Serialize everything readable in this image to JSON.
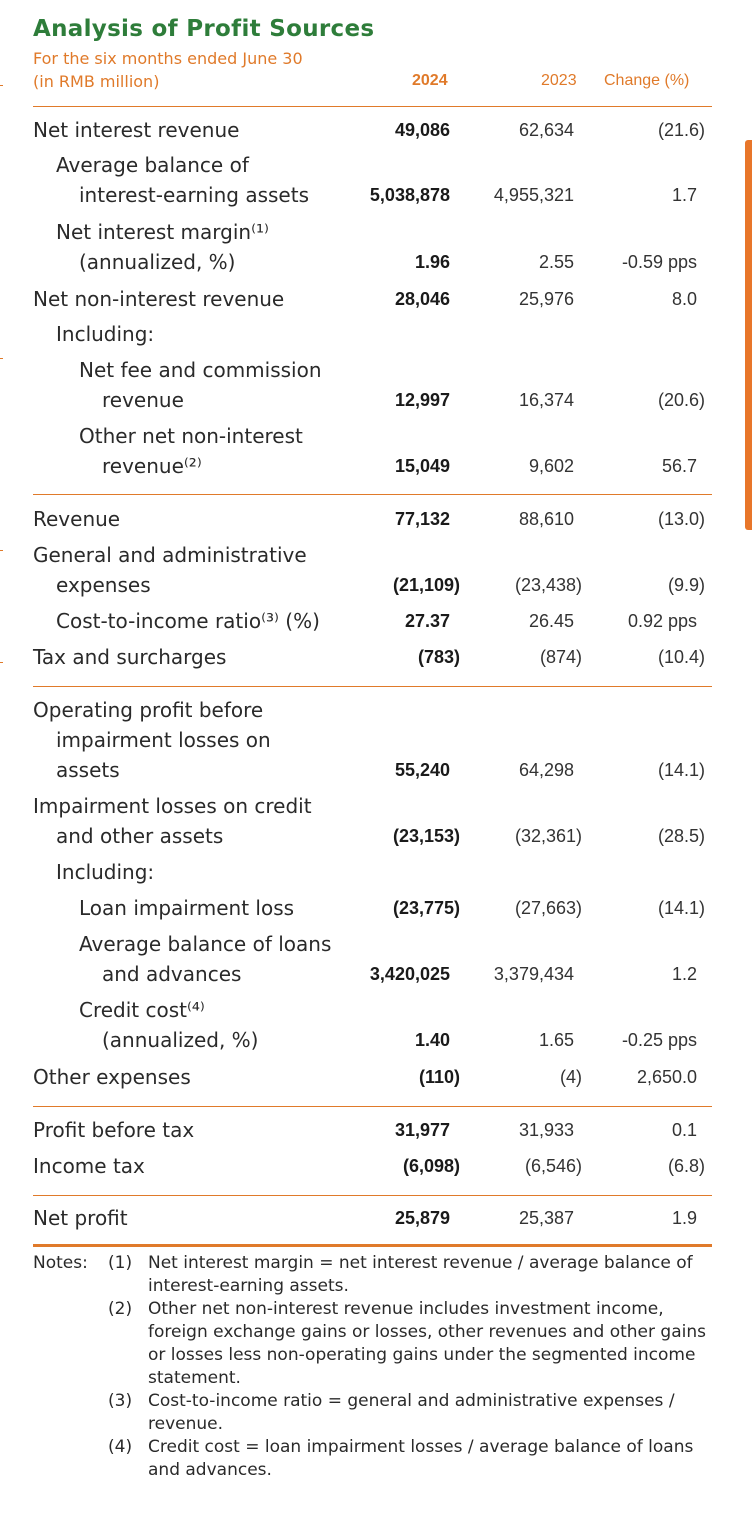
{
  "title": "Analysis of Profit Sources",
  "subtitle_line1": "For the six months ended June 30",
  "subtitle_line2": "(in RMB million)",
  "columns": {
    "y2024": "2024",
    "y2023": "2023",
    "change": "Change (%)"
  },
  "rows": [
    {
      "label": [
        "Net interest revenue"
      ],
      "v2024": "49,086",
      "v2023": "62,634",
      "change": "(21.6)"
    },
    {
      "label": [
        "Average balance of",
        "interest-earning assets"
      ],
      "v2024": "5,038,878",
      "v2023": "4,955,321",
      "change": "1.7"
    },
    {
      "label": [
        "Net interest margin⁽¹⁾",
        "(annualized, %)"
      ],
      "v2024": "1.96",
      "v2023": "2.55",
      "change": "-0.59 pps"
    },
    {
      "label": [
        "Net non-interest revenue"
      ],
      "v2024": "28,046",
      "v2023": "25,976",
      "change": "8.0"
    },
    {
      "label": [
        "Including:"
      ]
    },
    {
      "label": [
        "Net fee and commission",
        "revenue"
      ],
      "v2024": "12,997",
      "v2023": "16,374",
      "change": "(20.6)"
    },
    {
      "label": [
        "Other net non-interest",
        "revenue⁽²⁾"
      ],
      "v2024": "15,049",
      "v2023": "9,602",
      "change": "56.7"
    },
    {
      "label": [
        "Revenue"
      ],
      "v2024": "77,132",
      "v2023": "88,610",
      "change": "(13.0)"
    },
    {
      "label": [
        "General and administrative",
        "expenses"
      ],
      "v2024": "(21,109)",
      "v2023": "(23,438)",
      "change": "(9.9)"
    },
    {
      "label": [
        "Cost-to-income ratio⁽³⁾ (%)"
      ],
      "v2024": "27.37",
      "v2023": "26.45",
      "change": "0.92 pps"
    },
    {
      "label": [
        "Tax and surcharges"
      ],
      "v2024": "(783)",
      "v2023": "(874)",
      "change": "(10.4)"
    },
    {
      "label": [
        "Operating profit before",
        "impairment losses on",
        "assets"
      ],
      "v2024": "55,240",
      "v2023": "64,298",
      "change": "(14.1)"
    },
    {
      "label": [
        "Impairment losses on credit",
        "and other assets"
      ],
      "v2024": "(23,153)",
      "v2023": "(32,361)",
      "change": "(28.5)"
    },
    {
      "label": [
        "Including:"
      ]
    },
    {
      "label": [
        "Loan impairment loss"
      ],
      "v2024": "(23,775)",
      "v2023": "(27,663)",
      "change": "(14.1)"
    },
    {
      "label": [
        "Average balance of loans",
        "and advances"
      ],
      "v2024": "3,420,025",
      "v2023": "3,379,434",
      "change": "1.2"
    },
    {
      "label": [
        "Credit cost⁽⁴⁾",
        "(annualized, %)"
      ],
      "v2024": "1.40",
      "v2023": "1.65",
      "change": "-0.25 pps"
    },
    {
      "label": [
        "Other expenses"
      ],
      "v2024": "(110)",
      "v2023": "(4)",
      "change": "2,650.0"
    },
    {
      "label": [
        "Profit before tax"
      ],
      "v2024": "31,977",
      "v2023": "31,933",
      "change": "0.1"
    },
    {
      "label": [
        "Income tax"
      ],
      "v2024": "(6,098)",
      "v2023": "(6,546)",
      "change": "(6.8)"
    },
    {
      "label": [
        "Net profit"
      ],
      "v2024": "25,879",
      "v2023": "25,387",
      "change": "1.9"
    }
  ],
  "notes": {
    "heading": "Notes:",
    "items": [
      {
        "num": "(1)",
        "text": "Net interest margin = net interest revenue / average balance of interest-earning assets."
      },
      {
        "num": "(2)",
        "text": "Other net non-interest revenue includes investment income, foreign exchange gains or losses, other revenues and other gains or losses less non-operating gains under the segmented income statement."
      },
      {
        "num": "(3)",
        "text": "Cost-to-income ratio = general and administrative expenses / revenue."
      },
      {
        "num": "(4)",
        "text": "Credit cost = loan impairment losses / average balance of loans and advances."
      }
    ]
  }
}
